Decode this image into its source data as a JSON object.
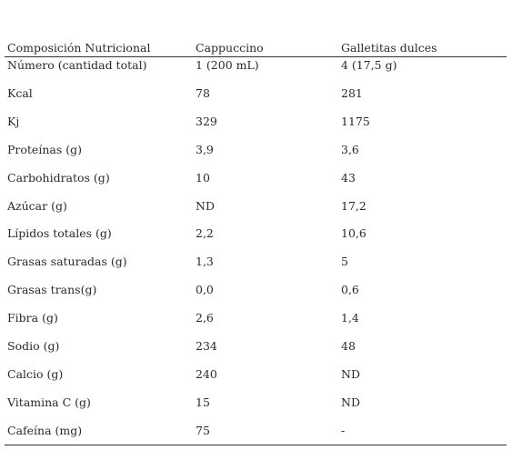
{
  "table": {
    "header": [
      "Composición Nutricional",
      "Cappuccino",
      "Galletitas dulces"
    ],
    "rows": [
      [
        "Número (cantidad total)",
        "1 (200 mL)",
        "4 (17,5 g)"
      ],
      [
        "Kcal",
        "78",
        "281"
      ],
      [
        "Kj",
        "329",
        "1175"
      ],
      [
        "Proteínas (g)",
        "3,9",
        "3,6"
      ],
      [
        "Carbohidratos (g)",
        "10",
        "43"
      ],
      [
        "Azúcar (g)",
        "ND",
        "17,2"
      ],
      [
        "Lípidos totales (g)",
        "2,2",
        "10,6"
      ],
      [
        "Grasas saturadas (g)",
        "1,3",
        "5"
      ],
      [
        "Grasas trans(g)",
        "0,0",
        "0,6"
      ],
      [
        "Fibra (g)",
        "2,6",
        "1,4"
      ],
      [
        "Sodio (g)",
        "234",
        "48"
      ],
      [
        "Calcio (g)",
        "240",
        "ND"
      ],
      [
        "Vitamina C (g)",
        "15",
        "ND"
      ],
      [
        "Cafeína (mg)",
        "75",
        "-"
      ]
    ]
  }
}
